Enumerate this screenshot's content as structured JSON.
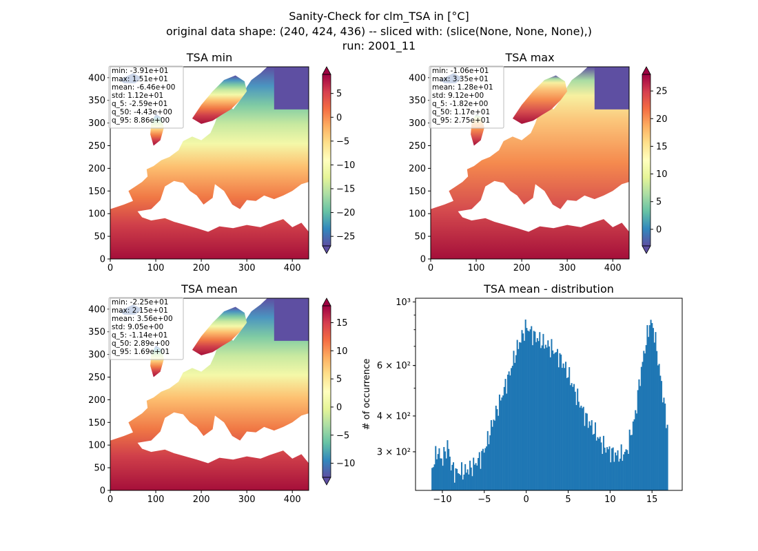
{
  "figure": {
    "suptitle_lines": [
      "Sanity-Check for clm_TSA in [°C]",
      "original data shape: (240, 424, 436) -- sliced with: (slice(None, None, None),)",
      "run: 2001_11"
    ]
  },
  "chart_data": [
    {
      "type": "heatmap",
      "title": "TSA min",
      "colormap": "Spectral_r",
      "xlim": [
        0,
        436
      ],
      "ylim": [
        0,
        424
      ],
      "xticks": [
        0,
        100,
        200,
        300,
        400
      ],
      "yticks": [
        0,
        50,
        100,
        150,
        200,
        250,
        300,
        350,
        400
      ],
      "colorbar": {
        "range": [
          -27,
          9
        ],
        "ticks": [
          -25,
          -20,
          -15,
          -10,
          -5,
          0,
          5
        ],
        "tick_labels": [
          "−25",
          "−20",
          "−15",
          "−10",
          "−5",
          "0",
          "5"
        ],
        "extend": "both"
      },
      "stats": [
        "min: -3.91e+01",
        "max: 1.51e+01",
        "mean: -6.46e+00",
        "std: 1.12e+01",
        "q_5: -2.59e+01",
        "q_50: -4.43e+00",
        "q_95: 8.86e+00"
      ]
    },
    {
      "type": "heatmap",
      "title": "TSA max",
      "colormap": "Spectral_r",
      "xlim": [
        0,
        436
      ],
      "ylim": [
        0,
        424
      ],
      "xticks": [
        0,
        100,
        200,
        300,
        400
      ],
      "yticks": [
        0,
        50,
        100,
        150,
        200,
        250,
        300,
        350,
        400
      ],
      "colorbar": {
        "range": [
          -3,
          28
        ],
        "ticks": [
          0,
          5,
          10,
          15,
          20,
          25
        ],
        "tick_labels": [
          "0",
          "5",
          "10",
          "15",
          "20",
          "25"
        ],
        "extend": "both"
      },
      "stats": [
        "min: -1.06e+01",
        "max: 3.35e+01",
        "mean: 1.28e+01",
        "std: 9.12e+00",
        "q_5: -1.82e+00",
        "q_50: 1.17e+01",
        "q_95: 2.75e+01"
      ]
    },
    {
      "type": "heatmap",
      "title": "TSA mean",
      "colormap": "Spectral_r",
      "xlim": [
        0,
        436
      ],
      "ylim": [
        0,
        424
      ],
      "xticks": [
        0,
        100,
        200,
        300,
        400
      ],
      "yticks": [
        0,
        50,
        100,
        150,
        200,
        250,
        300,
        350,
        400
      ],
      "colorbar": {
        "range": [
          -12.5,
          18
        ],
        "ticks": [
          -10,
          -5,
          0,
          5,
          10,
          15
        ],
        "tick_labels": [
          "−10",
          "−5",
          "0",
          "5",
          "10",
          "15"
        ],
        "extend": "both"
      },
      "stats": [
        "min: -2.25e+01",
        "max: 2.15e+01",
        "mean: 3.56e+00",
        "std: 9.05e+00",
        "q_5: -1.14e+01",
        "q_50: 2.89e+00",
        "q_95: 1.69e+01"
      ]
    },
    {
      "type": "bar",
      "title": "TSA mean - distribution",
      "ylabel": "# of occurrence",
      "xlabel": "",
      "yscale": "log",
      "xlim": [
        -13.2,
        18.6
      ],
      "ylim": [
        220,
        1030
      ],
      "color": "#1f77b4",
      "xticks": [
        -10,
        -5,
        0,
        5,
        10,
        15
      ],
      "xtick_labels": [
        "−10",
        "−5",
        "0",
        "5",
        "10",
        "15"
      ],
      "yticks_major": [
        1000
      ],
      "yticks_minor": [
        300,
        400,
        600
      ],
      "ytick_labels": {
        "300": "3 × 10²",
        "400": "4 × 10²",
        "600": "6 × 10²",
        "1000": "10³"
      },
      "bins": {
        "start": -11.3,
        "end": 16.9,
        "count": 200
      },
      "profile": [
        [
          -11.3,
          260
        ],
        [
          -11.0,
          275
        ],
        [
          -10.6,
          305
        ],
        [
          -10.3,
          290
        ],
        [
          -10.0,
          280
        ],
        [
          -9.7,
          300
        ],
        [
          -9.3,
          315
        ],
        [
          -9.0,
          270
        ],
        [
          -8.5,
          255
        ],
        [
          -7.5,
          255
        ],
        [
          -6.5,
          265
        ],
        [
          -5.5,
          285
        ],
        [
          -5.0,
          305
        ],
        [
          -4.5,
          335
        ],
        [
          -4.0,
          380
        ],
        [
          -3.0,
          460
        ],
        [
          -2.0,
          560
        ],
        [
          -1.0,
          700
        ],
        [
          0.0,
          820
        ],
        [
          1.0,
          760
        ],
        [
          2.0,
          720
        ],
        [
          3.0,
          690
        ],
        [
          4.0,
          640
        ],
        [
          5.0,
          560
        ],
        [
          6.0,
          470
        ],
        [
          7.0,
          400
        ],
        [
          8.0,
          360
        ],
        [
          9.0,
          320
        ],
        [
          10.0,
          300
        ],
        [
          11.0,
          290
        ],
        [
          12.0,
          300
        ],
        [
          13.0,
          400
        ],
        [
          14.0,
          650
        ],
        [
          14.8,
          860
        ],
        [
          15.2,
          800
        ],
        [
          15.8,
          600
        ],
        [
          16.3,
          470
        ],
        [
          16.9,
          350
        ]
      ]
    }
  ]
}
